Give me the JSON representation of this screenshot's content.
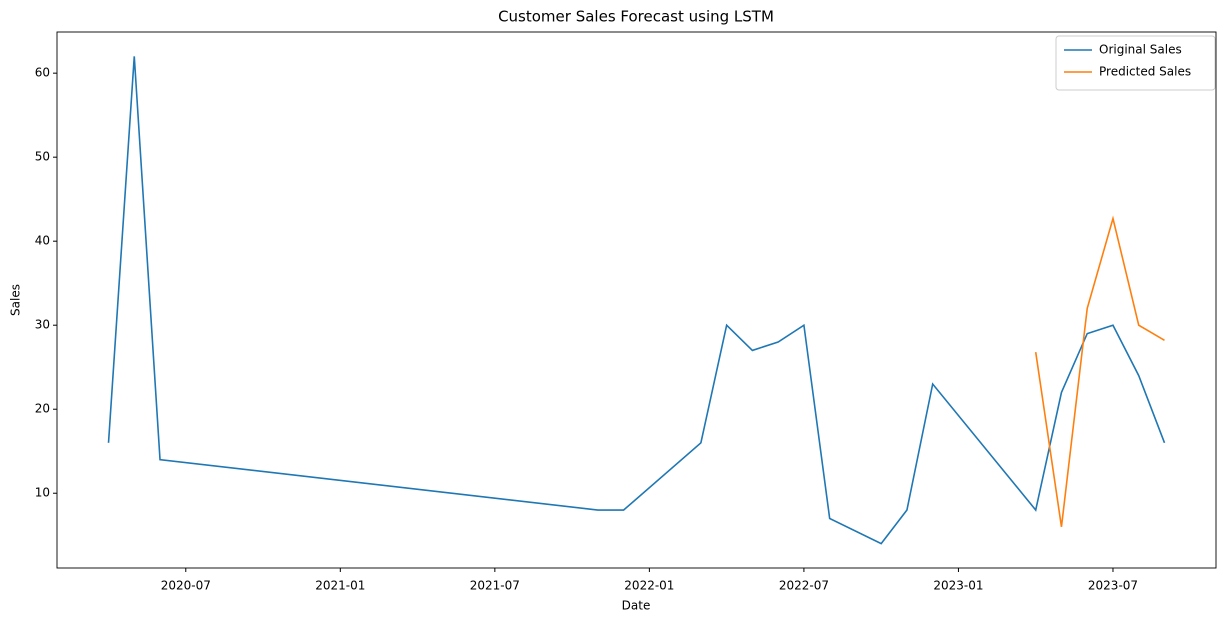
{
  "chart_data": {
    "type": "line",
    "title": "Customer Sales Forecast using LSTM",
    "x_label": "Date",
    "y_label": "Sales",
    "x": [
      "2020-04",
      "2020-05",
      "2020-06",
      "2021-11",
      "2021-12",
      "2022-03",
      "2022-04",
      "2022-05",
      "2022-06",
      "2022-07",
      "2022-08",
      "2022-10",
      "2022-11",
      "2022-12",
      "2023-04",
      "2023-05",
      "2023-06",
      "2023-07",
      "2023-08",
      "2023-09"
    ],
    "series": [
      {
        "name": "Original Sales",
        "color": "#1f77b4",
        "values": [
          16,
          62,
          14,
          8,
          8,
          16,
          30,
          27,
          28,
          30,
          7,
          4,
          8,
          23,
          8,
          22,
          29,
          30,
          24,
          16
        ]
      },
      {
        "name": "Predicted Sales",
        "color": "#ff7f0e",
        "values": [
          null,
          null,
          null,
          null,
          null,
          null,
          null,
          null,
          null,
          null,
          null,
          null,
          null,
          null,
          26.8,
          6.0,
          32,
          42.7,
          30,
          28.2
        ]
      }
    ],
    "xlim": [
      "2020-02",
      "2023-11"
    ],
    "xticks": [
      "2020-07",
      "2021-01",
      "2021-07",
      "2022-01",
      "2022-07",
      "2023-01",
      "2023-07"
    ],
    "ylim": [
      1.1,
      64.9
    ],
    "yticks": [
      10,
      20,
      30,
      40,
      50,
      60
    ],
    "legend": "upper right",
    "grid": false
  }
}
